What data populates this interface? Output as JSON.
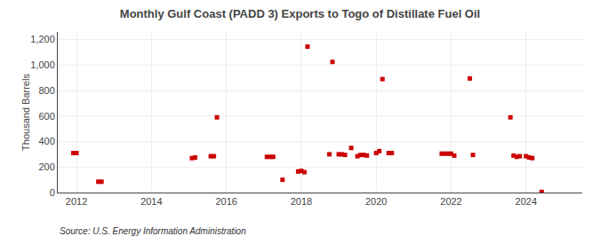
{
  "chart_data": {
    "type": "scatter",
    "title": "Monthly Gulf Coast (PADD 3) Exports to Togo of Distillate Fuel Oil",
    "ylabel": "Thousand Barrels",
    "annotations": [
      "Source: U.S. Energy Information Administration"
    ],
    "color": "#cc0000",
    "marker": "square",
    "grid": true,
    "xlim": [
      2011.5,
      2025.5
    ],
    "ylim": [
      0,
      1260
    ],
    "xticks": [
      2012,
      2014,
      2016,
      2018,
      2020,
      2022,
      2024
    ],
    "yticks": [
      0,
      200,
      400,
      600,
      800,
      {
        "value": 1000,
        "label": "1,000"
      },
      {
        "value": 1200,
        "label": "1,200"
      }
    ],
    "x": [
      2011.917,
      2012.0,
      2012.583,
      2012.667,
      2015.083,
      2015.167,
      2015.583,
      2015.667,
      2015.75,
      2017.083,
      2017.167,
      2017.25,
      2017.5,
      2017.917,
      2018.0,
      2018.083,
      2018.167,
      2018.75,
      2018.833,
      2019.0,
      2019.083,
      2019.167,
      2019.333,
      2019.5,
      2019.583,
      2019.667,
      2019.75,
      2020.0,
      2020.083,
      2020.167,
      2020.333,
      2020.417,
      2021.75,
      2021.833,
      2021.917,
      2022.0,
      2022.083,
      2022.5,
      2022.583,
      2023.583,
      2023.667,
      2023.75,
      2023.833,
      2024.0,
      2024.083,
      2024.167,
      2024.417
    ],
    "values": [
      310,
      310,
      85,
      85,
      270,
      275,
      285,
      285,
      590,
      280,
      280,
      280,
      100,
      165,
      170,
      160,
      1145,
      300,
      1025,
      300,
      300,
      295,
      350,
      285,
      295,
      295,
      290,
      310,
      325,
      890,
      310,
      310,
      305,
      305,
      305,
      305,
      290,
      895,
      295,
      590,
      290,
      280,
      285,
      285,
      275,
      270,
      5
    ]
  }
}
